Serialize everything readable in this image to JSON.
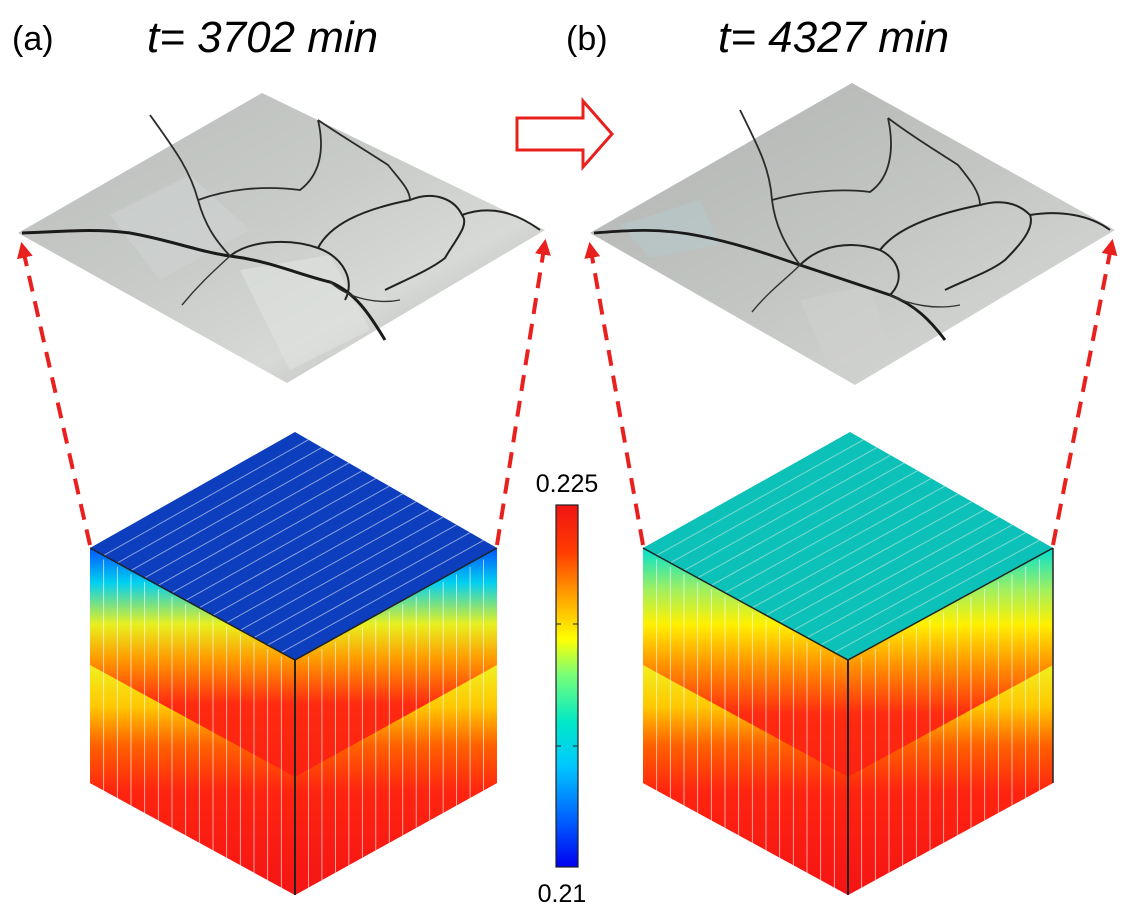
{
  "panels": [
    {
      "label": "(a)",
      "title": "t= 3702 min",
      "top_level": 0.21
    },
    {
      "label": "(b)",
      "title": "t= 4327 min",
      "top_level": 0.216
    }
  ],
  "colorbar": {
    "max_label": "0.225",
    "min_label": "0.21",
    "min": 0.21,
    "max": 0.225
  },
  "colors": {
    "arrow": "#e8201e",
    "colormap": [
      "#0000f0",
      "#0060ff",
      "#00c8ff",
      "#00e8c8",
      "#78ff78",
      "#ffff00",
      "#ffa000",
      "#ff3c00",
      "#f01414"
    ]
  }
}
